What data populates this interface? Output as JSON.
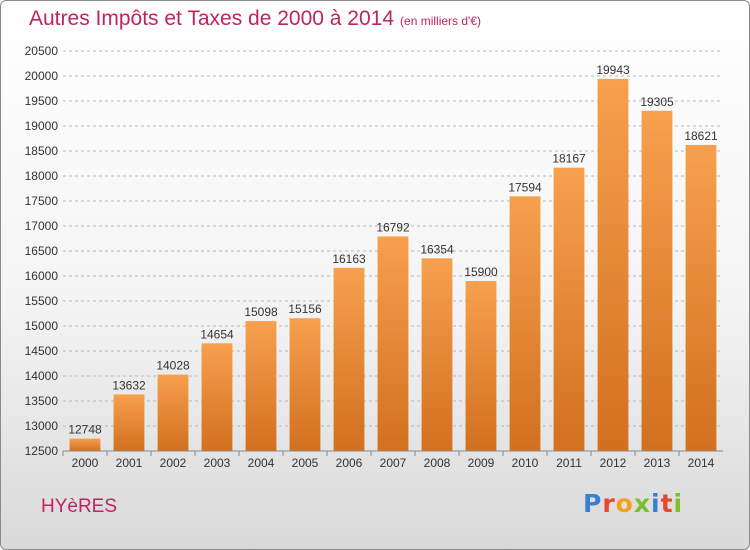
{
  "header": {
    "title": "Autres Impôts et Taxes de 2000 à 2014",
    "subtitle": "(en milliers d'€)"
  },
  "footer": {
    "city": "HYèRES",
    "logo_letters": [
      "P",
      "r",
      "o",
      "x",
      "i",
      "t",
      "i"
    ],
    "logo_colors": [
      "#3a7fd0",
      "#e64a2e",
      "#f2a01d",
      "#7bbf2e",
      "#3a7fd0",
      "#e64a2e",
      "#7bbf2e"
    ]
  },
  "colors": {
    "bar_light": "#f7a04e",
    "bar_dark": "#d2701f",
    "grid": "#b8b8b8",
    "accent": "#c0245e"
  },
  "chart_data": {
    "type": "bar",
    "title": "Autres Impôts et Taxes de 2000 à 2014",
    "subtitle": "(en milliers d'€)",
    "categories": [
      "2000",
      "2001",
      "2002",
      "2003",
      "2004",
      "2005",
      "2006",
      "2007",
      "2008",
      "2009",
      "2010",
      "2011",
      "2012",
      "2013",
      "2014"
    ],
    "values": [
      12748,
      13632,
      14028,
      14654,
      15098,
      15156,
      16163,
      16792,
      16354,
      15900,
      17594,
      18167,
      19943,
      19305,
      18621
    ],
    "ylim": [
      12500,
      20500
    ],
    "yticks": [
      12500,
      13000,
      13500,
      14000,
      14500,
      15000,
      15500,
      16000,
      16500,
      17000,
      17500,
      18000,
      18500,
      19000,
      19500,
      20000,
      20500
    ],
    "grid": true,
    "data_labels": true
  }
}
